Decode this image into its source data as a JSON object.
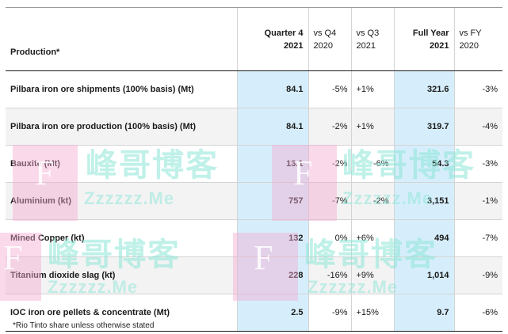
{
  "table": {
    "headers": {
      "label": "Production*",
      "q4": [
        "Quarter 4",
        "2021"
      ],
      "vs_q4": [
        "vs Q4",
        "2020"
      ],
      "vs_q3": [
        "vs Q3",
        "2021"
      ],
      "fy": [
        "Full Year",
        "2021"
      ],
      "vs_fy": [
        "vs FY",
        "2020"
      ]
    },
    "rows": [
      {
        "label": "Pilbara iron ore shipments (100% basis) (Mt)",
        "q4": "84.1",
        "vs_q4": "-5%",
        "vs_q3": "+1%",
        "fy": "321.6",
        "vs_fy": "-3%"
      },
      {
        "label": "Pilbara iron ore production (100% basis) (Mt)",
        "q4": "84.1",
        "vs_q4": "-2%",
        "vs_q3": "+1%",
        "fy": "319.7",
        "vs_fy": "-4%"
      },
      {
        "label": "Bauxite (Mt)",
        "q4": "13.1",
        "vs_q4": "-2%",
        "vs_q3": "-6%",
        "fy": "54.3",
        "vs_fy": "-3%"
      },
      {
        "label": "Aluminium (kt)",
        "q4": "757",
        "vs_q4": "-7%",
        "vs_q3": "-2%",
        "fy": "3,151",
        "vs_fy": "-1%"
      },
      {
        "label": "Mined Copper (kt)",
        "q4": "132",
        "vs_q4": "0%",
        "vs_q3": "+6%",
        "fy": "494",
        "vs_fy": "-7%"
      },
      {
        "label": "Titanium dioxide slag (kt)",
        "q4": "228",
        "vs_q4": "-16%",
        "vs_q3": "+9%",
        "fy": "1,014",
        "vs_fy": "-9%"
      },
      {
        "label": "IOC iron ore pellets & concentrate (Mt)",
        "q4": "2.5",
        "vs_q4": "-9%",
        "vs_q3": "+15%",
        "fy": "9.7",
        "vs_fy": "-6%"
      }
    ]
  },
  "footnote": "*Rio Tinto share unless otherwise stated",
  "watermark": {
    "chinese": "峰哥博客",
    "latin": "Zzzzzz.Me",
    "letter": "F"
  },
  "colors": {
    "highlight_column": "#d6eefb",
    "watermark_text": "#8ce6d7",
    "watermark_box": "#f5aad2"
  }
}
